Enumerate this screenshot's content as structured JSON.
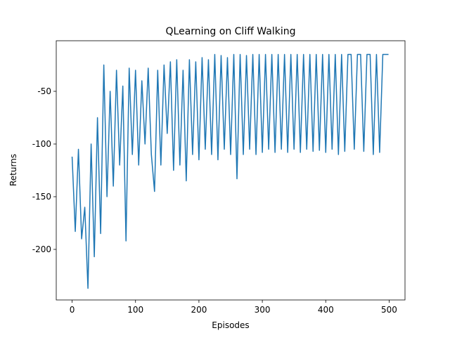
{
  "chart_data": {
    "type": "line",
    "title": "QLearning on Cliff Walking",
    "xlabel": "Episodes",
    "ylabel": "Returns",
    "x": [
      0,
      5,
      10,
      15,
      20,
      25,
      30,
      35,
      40,
      45,
      50,
      55,
      60,
      65,
      70,
      75,
      80,
      85,
      90,
      95,
      100,
      105,
      110,
      115,
      120,
      125,
      130,
      135,
      140,
      145,
      150,
      155,
      160,
      165,
      170,
      175,
      180,
      185,
      190,
      195,
      200,
      205,
      210,
      215,
      220,
      225,
      230,
      235,
      240,
      245,
      250,
      255,
      260,
      265,
      270,
      275,
      280,
      285,
      290,
      295,
      300,
      305,
      310,
      315,
      320,
      325,
      330,
      335,
      340,
      345,
      350,
      355,
      360,
      365,
      370,
      375,
      380,
      385,
      390,
      395,
      400,
      405,
      410,
      415,
      420,
      425,
      430,
      435,
      440,
      445,
      450,
      455,
      460,
      465,
      470,
      475,
      480,
      485,
      490,
      495,
      499
    ],
    "values": [
      -112,
      -183,
      -105,
      -190,
      -160,
      -237,
      -100,
      -207,
      -75,
      -185,
      -25,
      -150,
      -50,
      -140,
      -30,
      -120,
      -45,
      -192,
      -28,
      -110,
      -30,
      -120,
      -40,
      -100,
      -28,
      -110,
      -145,
      -30,
      -120,
      -25,
      -90,
      -22,
      -125,
      -20,
      -120,
      -30,
      -135,
      -20,
      -110,
      -22,
      -115,
      -18,
      -105,
      -20,
      -110,
      -15,
      -115,
      -16,
      -105,
      -18,
      -110,
      -15,
      -133,
      -15,
      -110,
      -16,
      -105,
      -15,
      -110,
      -15,
      -108,
      -15,
      -105,
      -15,
      -108,
      -15,
      -105,
      -15,
      -108,
      -15,
      -105,
      -15,
      -108,
      -15,
      -105,
      -15,
      -107,
      -15,
      -106,
      -15,
      -108,
      -15,
      -105,
      -15,
      -110,
      -15,
      -107,
      -15,
      -15,
      -105,
      -15,
      -15,
      -107,
      -15,
      -15,
      -110,
      -15,
      -108,
      -15,
      -15,
      -15
    ],
    "color": "#1f77b4",
    "xlim": [
      -25,
      525
    ],
    "ylim": [
      -248,
      -2
    ],
    "xticks": [
      0,
      100,
      200,
      300,
      400,
      500
    ],
    "yticks": [
      -200,
      -150,
      -100,
      -50
    ]
  }
}
